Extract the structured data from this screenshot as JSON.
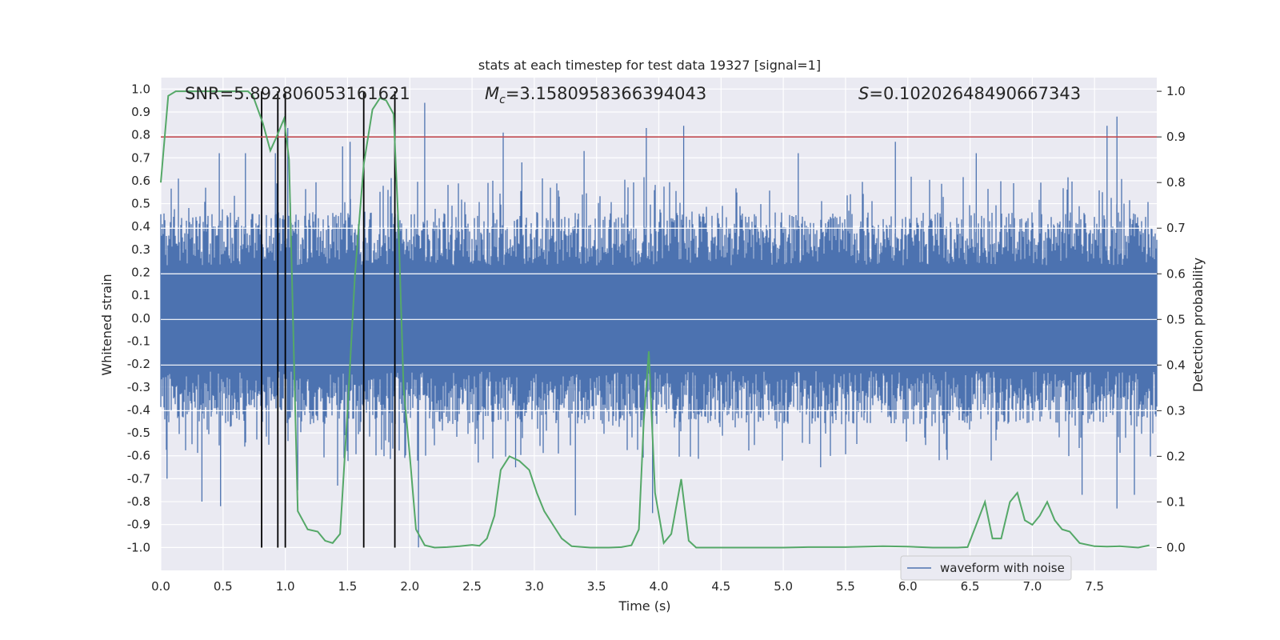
{
  "chart_data": {
    "type": "line",
    "title": "stats at each timestep for test data 19327 [signal=1]",
    "xlabel": "Time (s)",
    "ylabel_left": "Whitened strain",
    "ylabel_right": "Detection probability",
    "xlim": [
      0,
      8
    ],
    "ylim_left": [
      -1.1,
      1.05
    ],
    "ylim_right": [
      -0.05,
      1.03
    ],
    "x_ticks": [
      "0.0",
      "0.5",
      "1.0",
      "1.5",
      "2.0",
      "2.5",
      "3.0",
      "3.5",
      "4.0",
      "4.5",
      "5.0",
      "5.5",
      "6.0",
      "6.5",
      "7.0",
      "7.5"
    ],
    "x_tick_values": [
      0,
      0.5,
      1,
      1.5,
      2,
      2.5,
      3,
      3.5,
      4,
      4.5,
      5,
      5.5,
      6,
      6.5,
      7,
      7.5
    ],
    "y_ticks_left": [
      "1.0",
      "0.9",
      "0.8",
      "0.7",
      "0.6",
      "0.5",
      "0.4",
      "0.3",
      "0.2",
      "0.1",
      "0.0",
      "-0.1",
      "-0.2",
      "-0.3",
      "-0.4",
      "-0.5",
      "-0.6",
      "-0.7",
      "-0.8",
      "-0.9",
      "-1.0"
    ],
    "y_tick_values_left": [
      1,
      0.9,
      0.8,
      0.7,
      0.6,
      0.5,
      0.4,
      0.3,
      0.2,
      0.1,
      0,
      -0.1,
      -0.2,
      -0.3,
      -0.4,
      -0.5,
      -0.6,
      -0.7,
      -0.8,
      -0.9,
      -1.0
    ],
    "y_ticks_right": [
      "1.0",
      "0.9",
      "0.8",
      "0.7",
      "0.6",
      "0.5",
      "0.4",
      "0.3",
      "0.2",
      "0.1",
      "0.0"
    ],
    "y_tick_values_right": [
      1,
      0.9,
      0.8,
      0.7,
      0.6,
      0.5,
      0.4,
      0.3,
      0.2,
      0.1,
      0
    ],
    "annotations": {
      "snr": "SNR=5.892806053161621",
      "mc_symbol": "M",
      "mc_sub": "c",
      "mc_value": "=3.1580958366394043",
      "s_symbol": "S",
      "s_value": "=0.10202648490667343"
    },
    "threshold": {
      "value": 0.9,
      "color": "#c44e52"
    },
    "vertical_markers": [
      0.81,
      0.94,
      1.0,
      1.63,
      1.88
    ],
    "waveform": {
      "name": "waveform with noise",
      "color": "#4c72b0",
      "core_amplitude": 0.42,
      "peaks": [
        [
          0.47,
          0.72
        ],
        [
          0.68,
          0.72
        ],
        [
          0.92,
          0.72
        ],
        [
          1.02,
          0.83
        ],
        [
          1.46,
          0.75
        ],
        [
          1.52,
          0.77
        ],
        [
          1.63,
          0.83
        ],
        [
          1.88,
          0.8
        ],
        [
          2.12,
          0.94
        ],
        [
          2.75,
          0.81
        ],
        [
          2.9,
          0.68
        ],
        [
          3.4,
          0.73
        ],
        [
          3.9,
          0.83
        ],
        [
          4.2,
          0.84
        ],
        [
          5.12,
          0.72
        ],
        [
          5.9,
          0.77
        ],
        [
          6.55,
          0.72
        ],
        [
          7.6,
          0.84
        ],
        [
          7.68,
          0.88
        ],
        [
          0.05,
          -0.7
        ],
        [
          0.33,
          -0.8
        ],
        [
          0.48,
          -0.82
        ],
        [
          1.1,
          -0.75
        ],
        [
          1.42,
          -0.73
        ],
        [
          2.07,
          -1.0
        ],
        [
          2.55,
          -0.63
        ],
        [
          2.85,
          -0.65
        ],
        [
          3.33,
          -0.86
        ],
        [
          3.95,
          -0.85
        ],
        [
          5.3,
          -0.65
        ],
        [
          7.4,
          -0.77
        ],
        [
          7.68,
          -0.83
        ],
        [
          7.82,
          -0.77
        ]
      ]
    },
    "probability": {
      "color": "#55a868",
      "x": [
        0,
        0.06,
        0.12,
        0.2,
        0.3,
        0.4,
        0.5,
        0.6,
        0.7,
        0.74,
        0.82,
        0.88,
        0.93,
        0.99,
        1.03,
        1.1,
        1.18,
        1.26,
        1.32,
        1.38,
        1.44,
        1.5,
        1.56,
        1.63,
        1.7,
        1.76,
        1.81,
        1.87,
        1.91,
        1.95,
        2.0,
        2.05,
        2.12,
        2.2,
        2.3,
        2.4,
        2.5,
        2.56,
        2.62,
        2.68,
        2.73,
        2.8,
        2.88,
        2.96,
        3.02,
        3.08,
        3.15,
        3.22,
        3.3,
        3.45,
        3.6,
        3.7,
        3.78,
        3.84,
        3.88,
        3.92,
        3.97,
        4.04,
        4.1,
        4.18,
        4.24,
        4.3,
        4.5,
        4.8,
        5.0,
        5.2,
        5.5,
        5.8,
        6.0,
        6.2,
        6.4,
        6.48,
        6.55,
        6.62,
        6.68,
        6.75,
        6.82,
        6.88,
        6.94,
        7.0,
        7.06,
        7.12,
        7.18,
        7.24,
        7.3,
        7.38,
        7.5,
        7.6,
        7.7,
        7.85,
        7.94
      ],
      "y": [
        0.8,
        0.99,
        1.0,
        1.0,
        1.0,
        1.0,
        1.0,
        1.0,
        1.0,
        0.99,
        0.93,
        0.87,
        0.9,
        0.94,
        0.85,
        0.08,
        0.04,
        0.035,
        0.015,
        0.01,
        0.03,
        0.3,
        0.6,
        0.84,
        0.96,
        0.985,
        0.98,
        0.95,
        0.7,
        0.35,
        0.2,
        0.04,
        0.005,
        0.0,
        0.001,
        0.003,
        0.006,
        0.004,
        0.02,
        0.07,
        0.17,
        0.2,
        0.19,
        0.17,
        0.12,
        0.08,
        0.05,
        0.02,
        0.003,
        0.0,
        0.0,
        0.001,
        0.005,
        0.04,
        0.28,
        0.43,
        0.12,
        0.01,
        0.03,
        0.15,
        0.015,
        0.0,
        0.0,
        0.0,
        0.0,
        0.001,
        0.001,
        0.003,
        0.002,
        0.0,
        0.0,
        0.001,
        0.05,
        0.1,
        0.02,
        0.02,
        0.1,
        0.12,
        0.06,
        0.05,
        0.07,
        0.1,
        0.06,
        0.04,
        0.035,
        0.01,
        0.003,
        0.002,
        0.003,
        0.0,
        0.005
      ]
    },
    "legend": {
      "label": "waveform with noise",
      "position": "lower right"
    },
    "grid": true
  }
}
